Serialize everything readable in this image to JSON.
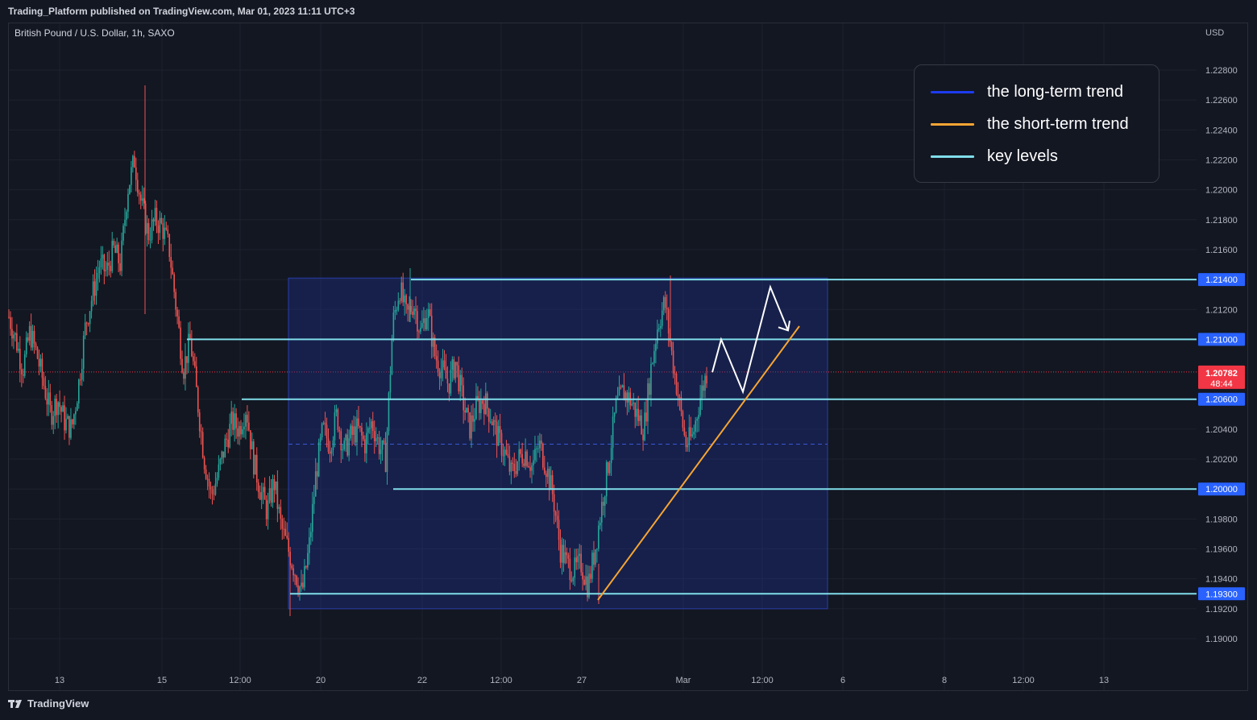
{
  "header": {
    "publish_line": "Trading_Platform published on TradingView.com, Mar 01, 2023 11:11 UTC+3",
    "symbol_line": "British Pound / U.S. Dollar, 1h, SAXO"
  },
  "footer": {
    "logo_text": "TradingView"
  },
  "legend": {
    "items": [
      {
        "label": "the long-term trend",
        "color": "#1d3bf0"
      },
      {
        "label": "the short-term trend",
        "color": "#f7a534"
      },
      {
        "label": "key levels",
        "color": "#80deea"
      }
    ]
  },
  "chart_data": {
    "type": "candlestick",
    "symbol": "British Pound / U.S. Dollar",
    "interval": "1h",
    "source": "SAXO",
    "currency_label": "USD",
    "ylim": [
      1.1885,
      1.2305
    ],
    "y_ticks": [
      "1.19000",
      "1.19200",
      "1.19400",
      "1.19600",
      "1.19800",
      "1.20000",
      "1.20200",
      "1.20400",
      "1.20600",
      "1.21000",
      "1.21200",
      "1.21400",
      "1.21600",
      "1.21800",
      "1.22000",
      "1.22200",
      "1.22400",
      "1.22600",
      "1.22800"
    ],
    "x_ticks": [
      "13",
      "15",
      "12:00",
      "20",
      "22",
      "12:00",
      "27",
      "Mar",
      "12:00",
      "6",
      "8",
      "12:00",
      "13"
    ],
    "last_price": {
      "value": "1.20782",
      "countdown": "48:44",
      "color": "#f23645"
    },
    "key_levels": [
      {
        "value": 1.214,
        "label": "1.21400"
      },
      {
        "value": 1.21,
        "label": "1.21000"
      },
      {
        "value": 1.206,
        "label": "1.20600"
      },
      {
        "value": 1.2,
        "label": "1.20000"
      },
      {
        "value": 1.193,
        "label": "1.19300"
      }
    ],
    "range_box": {
      "top": 1.2141,
      "bottom": 1.192,
      "mid": 1.203
    },
    "price_path": [
      1.2115,
      1.21,
      1.208,
      1.2105,
      1.209,
      1.207,
      1.205,
      1.206,
      1.2045,
      1.204,
      1.207,
      1.211,
      1.213,
      1.215,
      1.2145,
      1.216,
      1.215,
      1.22,
      1.222,
      1.219,
      1.217,
      1.218,
      1.2175,
      1.216,
      1.212,
      1.208,
      1.21,
      1.206,
      1.202,
      1.1995,
      1.201,
      1.203,
      1.2045,
      1.204,
      1.2055,
      1.202,
      1.2,
      1.1985,
      1.2005,
      1.1975,
      1.196,
      1.1945,
      1.193,
      1.196,
      1.201,
      1.204,
      1.203,
      1.205,
      1.2025,
      1.2035,
      1.204,
      1.203,
      1.2045,
      1.203,
      1.202,
      1.211,
      1.2135,
      1.2115,
      1.2125,
      1.2105,
      1.212,
      1.209,
      1.208,
      1.207,
      1.2085,
      1.206,
      1.204,
      1.2055,
      1.206,
      1.205,
      1.2035,
      1.2025,
      1.201,
      1.202,
      1.2025,
      1.2015,
      1.203,
      1.2015,
      1.1995,
      1.196,
      1.195,
      1.1945,
      1.195,
      1.1935,
      1.196,
      1.199,
      1.202,
      1.2055,
      1.2065,
      1.206,
      1.205,
      1.204,
      1.208,
      1.211,
      1.2125,
      1.209,
      1.206,
      1.203,
      1.2035,
      1.206,
      1.2078
    ],
    "projection_path": [
      {
        "x": "Mar 1 13:00",
        "y": 1.2078
      },
      {
        "x": "Mar 1 16:00",
        "y": 1.21
      },
      {
        "x": "Mar 2 01:00",
        "y": 1.2065
      },
      {
        "x": "Mar 2 10:00",
        "y": 1.2135
      },
      {
        "x": "Mar 2 17:00",
        "y": 1.2106
      }
    ],
    "short_term_trend": [
      {
        "x": "Feb 27 04:00",
        "y": 1.1925
      },
      {
        "x": "Mar 3 11:00",
        "y": 1.2109
      }
    ]
  }
}
